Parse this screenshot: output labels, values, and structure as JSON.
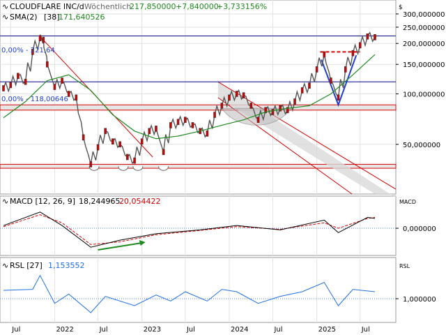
{
  "header": {
    "symbol": "CLOUDFLARE INC/d",
    "period": "Wöchentlich",
    "price": "217,850000",
    "change_abs": "+7,840000",
    "change_pct": "+3,733156%",
    "sma_label": "SMA(2)",
    "sma_period": "[38]",
    "sma_value": "171,640526",
    "currency": "$"
  },
  "fib_labels": {
    "top": "0,00% - 221,64",
    "mid": "0,00% - 118,00646"
  },
  "colors": {
    "price": "#555555",
    "sma": "#1f8a1f",
    "macd": "#000000",
    "signal": "#d40000",
    "rsi": "#1f6fe0",
    "channel": "#d40000",
    "hline": "#000080",
    "accent_green": "#1f8a1f",
    "accent_blue": "#1f3fd0"
  },
  "chart_data": [
    {
      "type": "line",
      "title": "CLOUDFLARE INC/d",
      "scale": "log",
      "ylim": [
        26,
        330
      ],
      "y_ticks": [
        300,
        250,
        200,
        150,
        100,
        50
      ],
      "y_tick_labels": [
        "300,000000",
        "250,000000",
        "200,000000",
        "150,000000",
        "100,000000",
        "50,000000"
      ],
      "x_labels": [
        "Jul",
        "2022",
        "Jul",
        "2023",
        "Jul",
        "2024",
        "Jul",
        "2025",
        "Jul"
      ],
      "x_label_dates": [
        "2021-07-01",
        "2022-01-01",
        "2022-07-01",
        "2023-01-01",
        "2023-07-01",
        "2024-01-01",
        "2024-07-01",
        "2025-01-01",
        "2025-07-01"
      ],
      "series": [
        {
          "name": "CLOUDFLARE INC/d",
          "points": [
            [
              "2021-06-01",
              108
            ],
            [
              "2021-07-01",
              113
            ],
            [
              "2021-08-01",
              128
            ],
            [
              "2021-09-01",
              118
            ],
            [
              "2021-10-01",
              178
            ],
            [
              "2021-11-01",
              215
            ],
            [
              "2021-11-15",
              210
            ],
            [
              "2021-12-01",
              150
            ],
            [
              "2022-01-01",
              110
            ],
            [
              "2022-02-01",
              120
            ],
            [
              "2022-03-01",
              100
            ],
            [
              "2022-04-01",
              95
            ],
            [
              "2022-05-01",
              55
            ],
            [
              "2022-06-01",
              38
            ],
            [
              "2022-07-01",
              48
            ],
            [
              "2022-08-01",
              60
            ],
            [
              "2022-09-01",
              52
            ],
            [
              "2022-10-01",
              50
            ],
            [
              "2022-11-01",
              42
            ],
            [
              "2022-12-01",
              40
            ],
            [
              "2023-01-01",
              52
            ],
            [
              "2023-02-01",
              60
            ],
            [
              "2023-03-01",
              62
            ],
            [
              "2023-04-01",
              45
            ],
            [
              "2023-05-01",
              65
            ],
            [
              "2023-06-01",
              68
            ],
            [
              "2023-07-01",
              70
            ],
            [
              "2023-08-01",
              65
            ],
            [
              "2023-09-01",
              60
            ],
            [
              "2023-10-01",
              58
            ],
            [
              "2023-11-01",
              75
            ],
            [
              "2023-12-01",
              85
            ],
            [
              "2024-01-01",
              95
            ],
            [
              "2024-02-01",
              100
            ],
            [
              "2024-03-01",
              98
            ],
            [
              "2024-04-01",
              85
            ],
            [
              "2024-05-01",
              70
            ],
            [
              "2024-06-01",
              80
            ],
            [
              "2024-07-01",
              78
            ],
            [
              "2024-08-01",
              82
            ],
            [
              "2024-09-01",
              80
            ],
            [
              "2024-10-01",
              90
            ],
            [
              "2024-11-01",
              105
            ],
            [
              "2024-12-01",
              112
            ],
            [
              "2025-01-01",
              140
            ],
            [
              "2025-02-01",
              172
            ],
            [
              "2025-03-01",
              120
            ],
            [
              "2025-04-01",
              95
            ],
            [
              "2025-05-01",
              140
            ],
            [
              "2025-06-01",
              175
            ],
            [
              "2025-07-01",
              195
            ],
            [
              "2025-08-01",
              220
            ],
            [
              "2025-09-01",
              217.85
            ]
          ]
        },
        {
          "name": "SMA(2) [38]",
          "points": [
            [
              "2021-06-01",
              72
            ],
            [
              "2021-09-01",
              90
            ],
            [
              "2021-12-01",
              120
            ],
            [
              "2022-03-01",
              130
            ],
            [
              "2022-06-01",
              105
            ],
            [
              "2022-09-01",
              75
            ],
            [
              "2022-12-01",
              60
            ],
            [
              "2023-03-01",
              54
            ],
            [
              "2023-06-01",
              56
            ],
            [
              "2023-09-01",
              60
            ],
            [
              "2023-12-01",
              65
            ],
            [
              "2024-03-01",
              70
            ],
            [
              "2024-06-01",
              78
            ],
            [
              "2024-09-01",
              82
            ],
            [
              "2024-12-01",
              85
            ],
            [
              "2025-03-01",
              100
            ],
            [
              "2025-06-01",
              130
            ],
            [
              "2025-09-01",
              171.64
            ]
          ]
        }
      ],
      "horizontal_lines": [
        221.64,
        118.00646
      ],
      "support_zones": [
        [
          80,
          86
        ],
        [
          36,
          38
        ]
      ],
      "marked_points": [
        [
          "2025-04-01",
          86
        ]
      ],
      "legend": "top-left"
    },
    {
      "type": "line",
      "title": "MACD [12, 26, 9]",
      "y_ticks": [
        0
      ],
      "y_tick_labels": [
        "0,000000"
      ],
      "axis_label": "MACD",
      "series": [
        {
          "name": "MACD",
          "value_label": "18,244965",
          "points": [
            [
              "2021-06-01",
              5
            ],
            [
              "2021-11-01",
              30
            ],
            [
              "2022-02-01",
              5
            ],
            [
              "2022-06-01",
              -35
            ],
            [
              "2022-10-01",
              -22
            ],
            [
              "2023-03-01",
              -10
            ],
            [
              "2023-09-01",
              -3
            ],
            [
              "2024-02-01",
              5
            ],
            [
              "2024-08-01",
              -3
            ],
            [
              "2025-02-01",
              15
            ],
            [
              "2025-04-01",
              -8
            ],
            [
              "2025-08-01",
              20
            ],
            [
              "2025-09-01",
              18.24
            ]
          ]
        },
        {
          "name": "Signal",
          "value_label": "20,054422",
          "points": [
            [
              "2021-06-01",
              3
            ],
            [
              "2021-11-01",
              25
            ],
            [
              "2022-02-01",
              10
            ],
            [
              "2022-06-01",
              -30
            ],
            [
              "2022-10-01",
              -25
            ],
            [
              "2023-03-01",
              -12
            ],
            [
              "2023-09-01",
              -4
            ],
            [
              "2024-02-01",
              3
            ],
            [
              "2024-08-01",
              -2
            ],
            [
              "2025-02-01",
              10
            ],
            [
              "2025-04-01",
              0
            ],
            [
              "2025-08-01",
              18
            ],
            [
              "2025-09-01",
              20.05
            ]
          ]
        }
      ]
    },
    {
      "type": "line",
      "title": "RSL [27]",
      "y_ticks": [
        1
      ],
      "y_tick_labels": [
        "1,000000"
      ],
      "axis_label": "RSL",
      "series": [
        {
          "name": "RSL",
          "value_label": "1,153552",
          "points": [
            [
              "2021-06-01",
              1.18
            ],
            [
              "2021-10-01",
              1.2
            ],
            [
              "2021-11-01",
              1.5
            ],
            [
              "2022-01-01",
              0.9
            ],
            [
              "2022-03-01",
              1.1
            ],
            [
              "2022-06-01",
              0.7
            ],
            [
              "2022-08-01",
              1.05
            ],
            [
              "2022-12-01",
              0.85
            ],
            [
              "2023-03-01",
              1.08
            ],
            [
              "2023-05-01",
              0.95
            ],
            [
              "2023-07-01",
              1.15
            ],
            [
              "2023-10-01",
              0.95
            ],
            [
              "2023-12-01",
              1.2
            ],
            [
              "2024-02-01",
              1.15
            ],
            [
              "2024-05-01",
              0.9
            ],
            [
              "2024-08-01",
              1.05
            ],
            [
              "2024-11-01",
              1.15
            ],
            [
              "2025-02-01",
              1.35
            ],
            [
              "2025-04-01",
              0.85
            ],
            [
              "2025-06-01",
              1.2
            ],
            [
              "2025-09-01",
              1.15
            ]
          ]
        }
      ]
    }
  ]
}
